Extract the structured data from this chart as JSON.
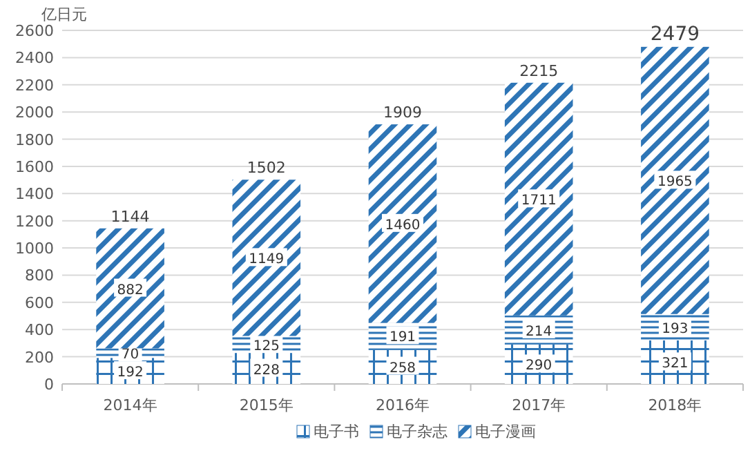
{
  "chart_data": {
    "type": "bar",
    "stacked": true,
    "ylabel": "亿日元",
    "categories": [
      "2014年",
      "2015年",
      "2016年",
      "2017年",
      "2018年"
    ],
    "series": [
      {
        "name": "电子书",
        "color": "#2e75b6",
        "values": [
          192,
          228,
          258,
          290,
          321
        ]
      },
      {
        "name": "电子杂志",
        "color": "#2e75b6",
        "values": [
          70,
          125,
          191,
          214,
          193
        ]
      },
      {
        "name": "电子漫画",
        "color": "#2e75b6",
        "values": [
          882,
          1149,
          1460,
          1711,
          1965
        ]
      }
    ],
    "totals": [
      "1144",
      "1502",
      "1909",
      "2215",
      "2479"
    ],
    "data_labels": true,
    "ylim": [
      0,
      2600
    ],
    "yticks": [
      0,
      200,
      400,
      600,
      800,
      1000,
      1200,
      1400,
      1600,
      1800,
      2000,
      2200,
      2400,
      2600
    ],
    "grid": "y",
    "legend": "bottom"
  }
}
